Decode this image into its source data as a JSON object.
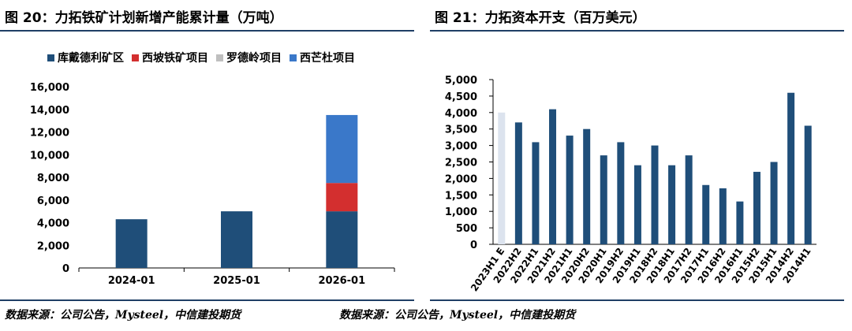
{
  "left": {
    "title": "图 20：力拓铁矿计划新增产能累计量（万吨）",
    "source": "数据来源：公司公告，Mysteel，中信建投期货",
    "legend": [
      {
        "name": "库戴德利矿区",
        "color": "#1f4e79"
      },
      {
        "name": "西坡铁矿项目",
        "color": "#d32f2f"
      },
      {
        "name": "罗德岭项目",
        "color": "#bfbfbf"
      },
      {
        "name": "西芒杜项目",
        "color": "#3a78c9"
      }
    ]
  },
  "right": {
    "title": "图 21：力拓资本开支（百万美元）",
    "source": "数据来源：公司公告，Mysteel，中信建投期货"
  },
  "chart_data": [
    {
      "type": "bar",
      "stacked": true,
      "title": "图 20：力拓铁矿计划新增产能累计量（万吨）",
      "categories": [
        "2024-01",
        "2025-01",
        "2026-01"
      ],
      "series": [
        {
          "name": "库戴德利矿区",
          "color": "#1f4e79",
          "values": [
            4300,
            5000,
            5000
          ]
        },
        {
          "name": "西坡铁矿项目",
          "color": "#d32f2f",
          "values": [
            0,
            0,
            2500
          ]
        },
        {
          "name": "罗德岭项目",
          "color": "#bfbfbf",
          "values": [
            0,
            0,
            0
          ]
        },
        {
          "name": "西芒杜项目",
          "color": "#3a78c9",
          "values": [
            0,
            0,
            6000
          ]
        }
      ],
      "ylim": [
        0,
        16000
      ],
      "yticks": [
        0,
        2000,
        4000,
        6000,
        8000,
        10000,
        12000,
        14000,
        16000
      ],
      "ytick_labels": [
        "0",
        "2,000",
        "4,000",
        "6,000",
        "8,000",
        "10,000",
        "12,000",
        "14,000",
        "16,000"
      ],
      "legend_position": "top"
    },
    {
      "type": "bar",
      "title": "图 21：力拓资本开支（百万美元）",
      "categories": [
        "2023H1 E",
        "2022H2",
        "2022H1",
        "2021H2",
        "2021H1",
        "2020H2",
        "2020H1",
        "2019H2",
        "2019H1",
        "2018H2",
        "2018H1",
        "2017H2",
        "2017H1",
        "2016H2",
        "2016H1",
        "2015H2",
        "2015H1",
        "2014H2",
        "2014H1"
      ],
      "values": [
        4000,
        3700,
        3100,
        4100,
        3300,
        3500,
        2700,
        3100,
        2400,
        3000,
        2400,
        2700,
        1800,
        1700,
        1300,
        2200,
        2500,
        4600,
        3600
      ],
      "bar_colors": {
        "estimate": "#dce3ee",
        "actual": "#1f4e79"
      },
      "ylim": [
        0,
        5000
      ],
      "yticks": [
        0,
        500,
        1000,
        1500,
        2000,
        2500,
        3000,
        3500,
        4000,
        4500,
        5000
      ],
      "ytick_labels": [
        "0",
        "500",
        "1,000",
        "1,500",
        "2,000",
        "2,500",
        "3,000",
        "3,500",
        "4,000",
        "4,500",
        "5,000"
      ]
    }
  ]
}
